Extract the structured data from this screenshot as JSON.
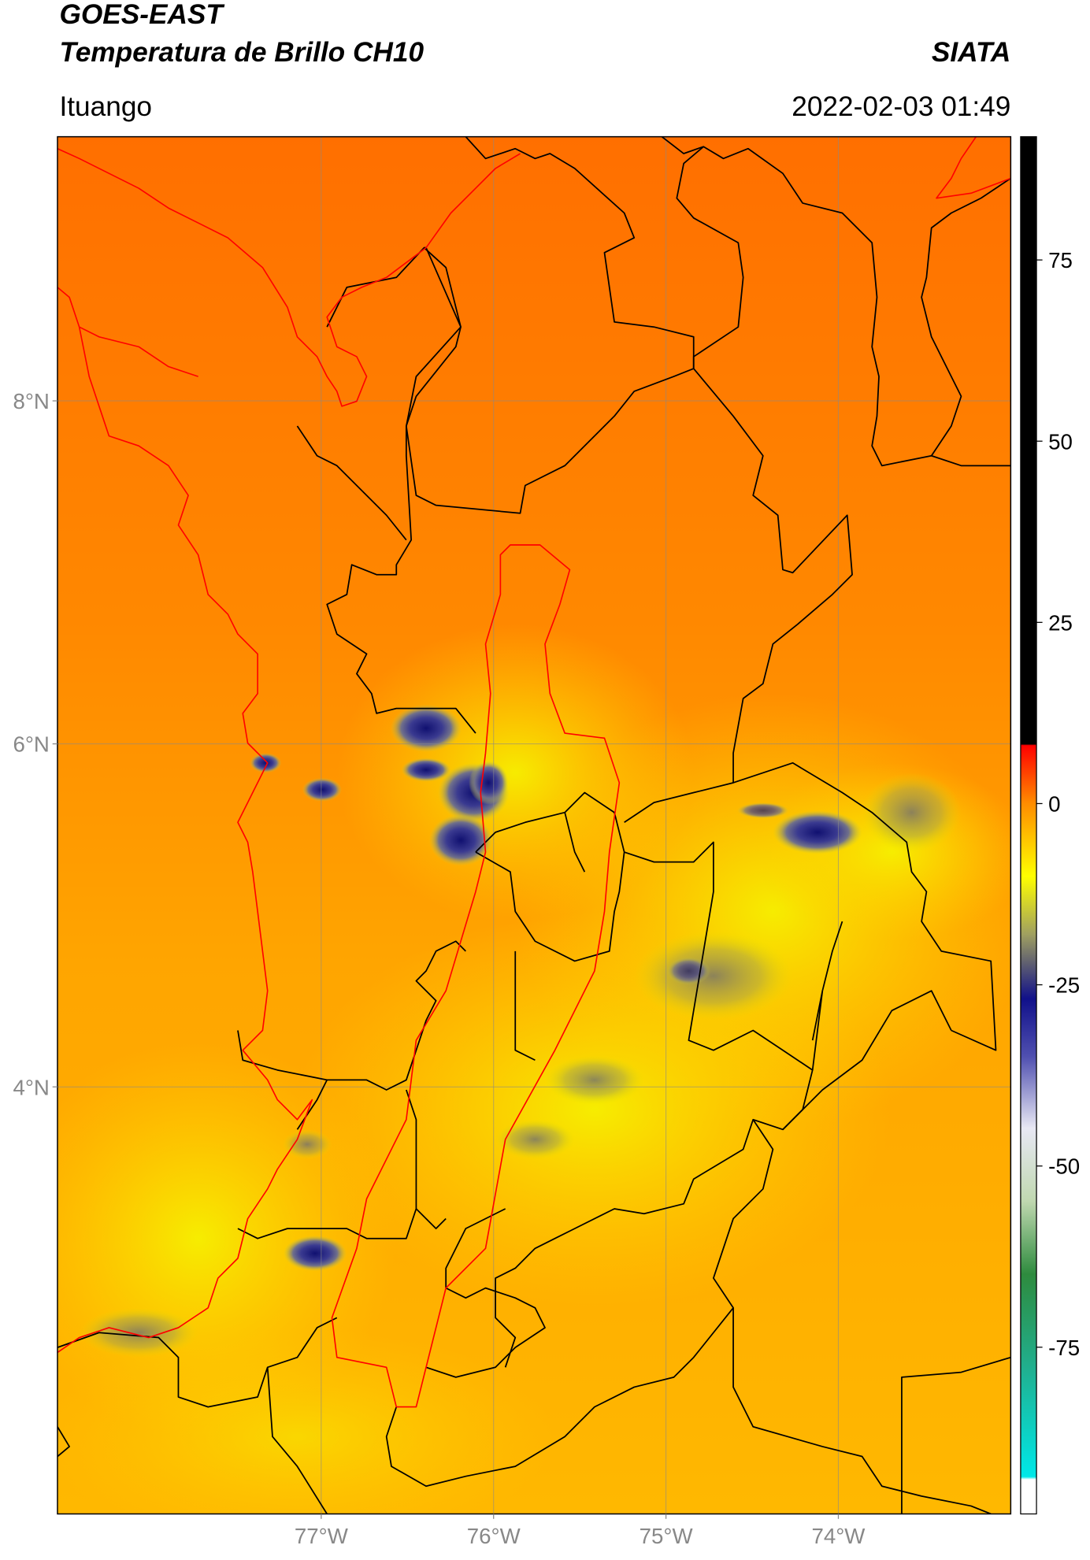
{
  "header": {
    "title": "GOES-EAST",
    "subtitle": "Temperatura de Brillo CH10",
    "source": "SIATA",
    "location": "Ituango",
    "timestamp": "2022-02-03 01:49"
  },
  "map": {
    "xlim": [
      -78.53,
      -73.0
    ],
    "ylim": [
      1.51,
      9.54
    ],
    "xticks": [
      {
        "value": -77,
        "label": "77°W"
      },
      {
        "value": -76,
        "label": "76°W"
      },
      {
        "value": -75,
        "label": "75°W"
      },
      {
        "value": -74,
        "label": "74°W"
      }
    ],
    "yticks": [
      {
        "value": 4,
        "label": "4°N"
      },
      {
        "value": 6,
        "label": "6°N"
      },
      {
        "value": 8,
        "label": "8°N"
      }
    ],
    "grid": true
  },
  "colorbar": {
    "lim": [
      -98,
      92
    ],
    "ticks": [
      -75,
      -50,
      -25,
      0,
      25,
      50,
      75
    ]
  }
}
